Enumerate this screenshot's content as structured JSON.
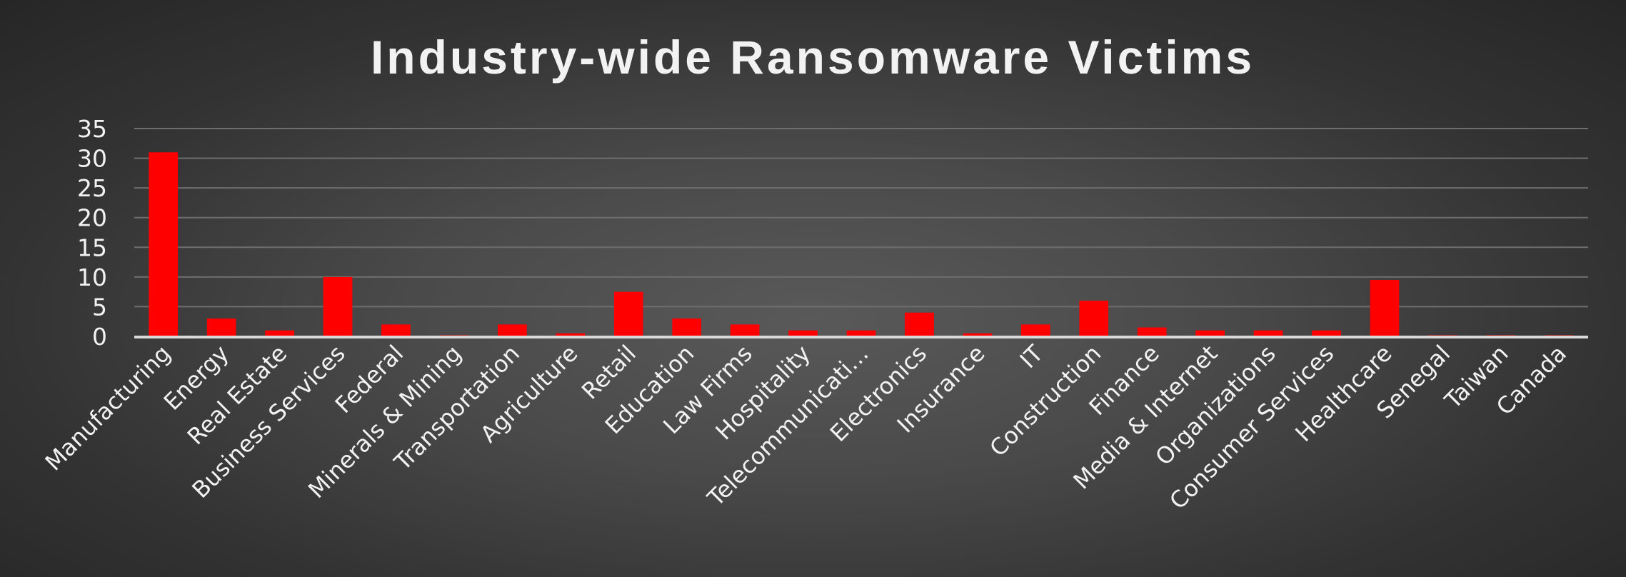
{
  "chart_data": {
    "type": "bar",
    "title": "Industry-wide Ransomware Victims",
    "xlabel": "",
    "ylabel": "",
    "ylim": [
      0,
      35
    ],
    "yticks": [
      "0",
      "5",
      "10",
      "15",
      "20",
      "25",
      "30",
      "35"
    ],
    "grid": true,
    "legend": "none",
    "bar_color": "#ff0000",
    "categories": [
      "Manufacturing",
      "Energy",
      "Real Estate",
      "Business Services",
      "Federal",
      "Minerals & Mining",
      "Transportation",
      "Agriculture",
      "Retail",
      "Education",
      "Law Firms",
      "Hospitality",
      "Telecommunicati…",
      "Electronics",
      "Insurance",
      "IT",
      "Construction",
      "Finance",
      "Media & Internet",
      "Organizations",
      "Consumer Services",
      "Healthcare",
      "Senegal",
      "Taiwan",
      "Canada"
    ],
    "values": [
      31,
      3,
      1,
      10,
      2,
      0,
      2,
      0.5,
      7.5,
      3,
      2,
      1,
      1,
      4,
      0.5,
      2,
      6,
      1.5,
      1,
      1,
      1,
      9.5,
      0,
      0,
      0
    ]
  }
}
